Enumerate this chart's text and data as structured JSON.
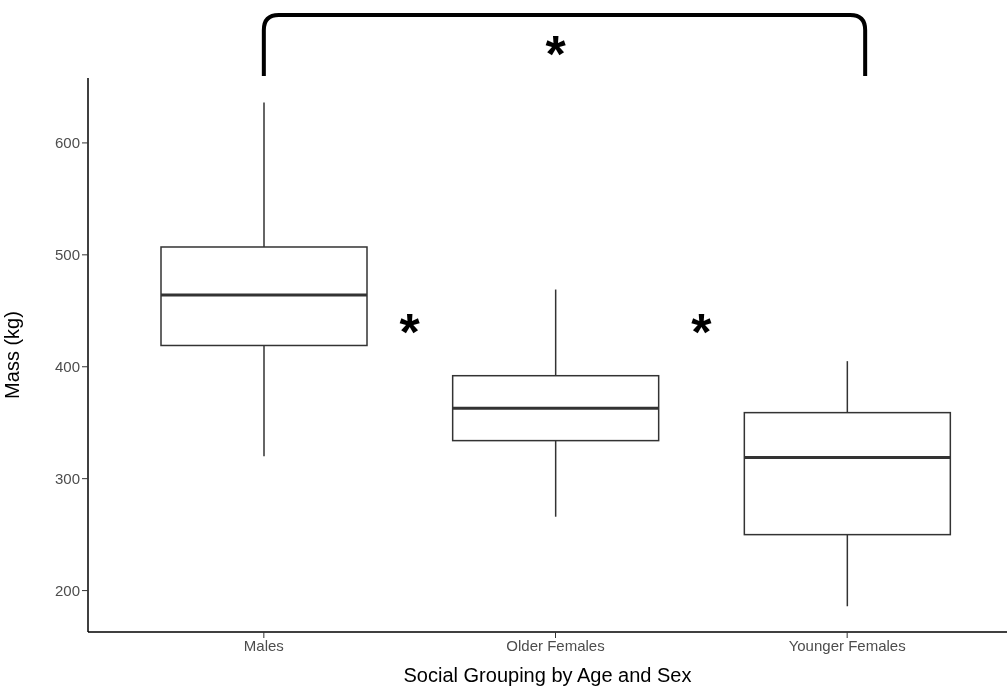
{
  "chart_data": {
    "type": "box",
    "xlabel": "Social Grouping by Age and Sex",
    "ylabel": "Mass (kg)",
    "categories": [
      "Males",
      "Older Females",
      "Younger Females"
    ],
    "boxes": [
      {
        "low": 320,
        "q1": 419,
        "median": 464,
        "q3": 507,
        "high": 636
      },
      {
        "low": 266,
        "q1": 334,
        "median": 363,
        "q3": 392,
        "high": 469
      },
      {
        "low": 186,
        "q1": 250,
        "median": 319,
        "q3": 359,
        "high": 405
      }
    ],
    "ylim": [
      163,
      658
    ],
    "yticks": [
      200,
      300,
      400,
      500,
      600
    ],
    "annotations": [
      "*",
      "*",
      "*"
    ]
  }
}
